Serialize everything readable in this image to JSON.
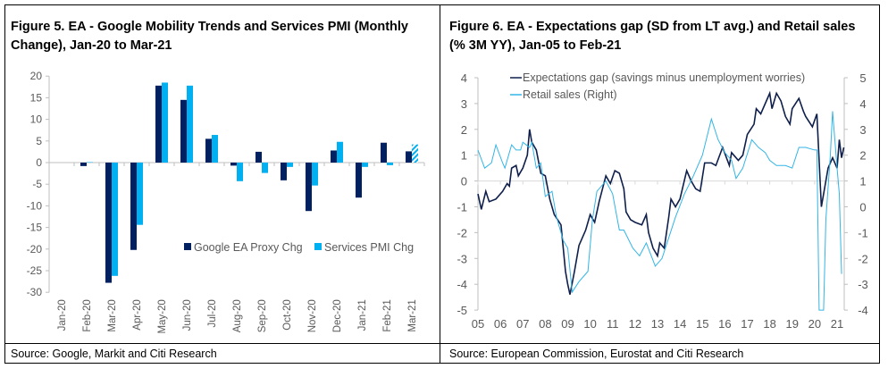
{
  "left": {
    "title": "Figure 5. EA - Google Mobility Trends and Services PMI (Monthly Change), Jan-20 to Mar-21",
    "source": "Source: Google, Markit and Citi Research"
  },
  "right": {
    "title": "Figure 6. EA - Expectations gap (SD from LT avg.) and Retail sales (% 3M YY), Jan-05 to Feb-21",
    "source": "Source: European Commission, Eurostat and Citi Research"
  },
  "chart_data": [
    {
      "type": "bar",
      "title": "Figure 5. EA - Google Mobility Trends and Services PMI (Monthly Change), Jan-20 to Mar-21",
      "categories": [
        "Jan-20",
        "Feb-20",
        "Mar-20",
        "Apr-20",
        "May-20",
        "Jun-20",
        "Jul-20",
        "Aug-20",
        "Sep-20",
        "Oct-20",
        "Nov-20",
        "Dec-20",
        "Jan-21",
        "Feb-21",
        "Mar-21"
      ],
      "series": [
        {
          "name": "Google EA Proxy Chg",
          "color": "#002060",
          "values": [
            0,
            -0.8,
            -27.8,
            -20.2,
            17.8,
            14.5,
            5.5,
            -0.7,
            2.5,
            -4.1,
            -11.2,
            2.8,
            -8.1,
            4.6,
            2.6
          ]
        },
        {
          "name": "Services PMI Chg",
          "color": "#00B0F0",
          "values": [
            0,
            0.1,
            -26.2,
            -14.4,
            18.5,
            17.8,
            6.4,
            -4.3,
            -2.4,
            -1.0,
            -5.3,
            4.8,
            -1.0,
            -0.6,
            4.2
          ],
          "hatched_last": true
        }
      ],
      "ylim": [
        -30,
        20
      ],
      "yticks": [
        20,
        15,
        10,
        5,
        0,
        -5,
        -10,
        -15,
        -20,
        -25,
        -30
      ],
      "legend": "bottom-right"
    },
    {
      "type": "line",
      "title": "Figure 6. EA - Expectations gap (SD from LT avg.) and Retail sales (% 3M YY), Jan-05 to Feb-21",
      "xticks": [
        "05",
        "06",
        "07",
        "08",
        "09",
        "10",
        "11",
        "12",
        "13",
        "14",
        "15",
        "16",
        "17",
        "18",
        "19",
        "20",
        "21"
      ],
      "ylim": [
        -5,
        4
      ],
      "yticks": [
        4,
        3,
        2,
        1,
        0,
        -1,
        -2,
        -3,
        -4,
        -5
      ],
      "y2lim": [
        -4,
        5
      ],
      "y2ticks": [
        5,
        4,
        3,
        2,
        1,
        0,
        -1,
        -2,
        -3,
        -4
      ],
      "legend": "top-left",
      "series": [
        {
          "name": "Expectations gap (savings minus unemployment worries)",
          "axis": "left",
          "color": "#0F1F4B",
          "points": [
            [
              5.0,
              -0.5
            ],
            [
              5.15,
              -1.1
            ],
            [
              5.35,
              -0.4
            ],
            [
              5.5,
              -0.8
            ],
            [
              5.8,
              -0.7
            ],
            [
              6.1,
              -0.4
            ],
            [
              6.3,
              -0.1
            ],
            [
              6.4,
              -0.2
            ],
            [
              6.5,
              0.5
            ],
            [
              6.7,
              0.6
            ],
            [
              6.8,
              0.2
            ],
            [
              7.0,
              0.5
            ],
            [
              7.2,
              1.0
            ],
            [
              7.3,
              2.0
            ],
            [
              7.4,
              1.5
            ],
            [
              7.6,
              1.2
            ],
            [
              7.8,
              0.3
            ],
            [
              8.0,
              0.2
            ],
            [
              8.2,
              -0.7
            ],
            [
              8.4,
              -1.3
            ],
            [
              8.7,
              -1.7
            ],
            [
              8.9,
              -3.5
            ],
            [
              9.0,
              -4.0
            ],
            [
              9.1,
              -4.4
            ],
            [
              9.3,
              -3.5
            ],
            [
              9.5,
              -2.5
            ],
            [
              9.8,
              -1.9
            ],
            [
              10.0,
              -1.3
            ],
            [
              10.2,
              -1.6
            ],
            [
              10.4,
              -0.8
            ],
            [
              10.7,
              0.2
            ],
            [
              10.9,
              -0.1
            ],
            [
              11.1,
              0.4
            ],
            [
              11.3,
              0.3
            ],
            [
              11.5,
              -0.3
            ],
            [
              11.6,
              -1.2
            ],
            [
              11.8,
              -1.5
            ],
            [
              12.0,
              -1.6
            ],
            [
              12.3,
              -1.7
            ],
            [
              12.5,
              -1.3
            ],
            [
              12.6,
              -2.0
            ],
            [
              12.8,
              -2.6
            ],
            [
              13.0,
              -2.9
            ],
            [
              13.1,
              -2.4
            ],
            [
              13.3,
              -2.6
            ],
            [
              13.5,
              -1.4
            ],
            [
              13.6,
              -0.7
            ],
            [
              13.8,
              -1.0
            ],
            [
              14.0,
              -0.7
            ],
            [
              14.3,
              0.4
            ],
            [
              14.5,
              0.0
            ],
            [
              14.7,
              -0.3
            ],
            [
              14.9,
              -0.4
            ],
            [
              15.1,
              0.7
            ],
            [
              15.4,
              0.7
            ],
            [
              15.6,
              0.6
            ],
            [
              15.9,
              1.3
            ],
            [
              16.2,
              0.6
            ],
            [
              16.3,
              1.1
            ],
            [
              16.6,
              0.8
            ],
            [
              16.8,
              1.0
            ],
            [
              17.0,
              1.8
            ],
            [
              17.3,
              2.2
            ],
            [
              17.4,
              2.8
            ],
            [
              17.6,
              2.6
            ],
            [
              17.9,
              3.2
            ],
            [
              18.0,
              3.4
            ],
            [
              18.1,
              2.8
            ],
            [
              18.3,
              3.4
            ],
            [
              18.5,
              3.1
            ],
            [
              18.7,
              2.5
            ],
            [
              18.9,
              2.2
            ],
            [
              19.0,
              2.8
            ],
            [
              19.3,
              3.2
            ],
            [
              19.5,
              2.7
            ],
            [
              19.6,
              2.5
            ],
            [
              19.9,
              2.1
            ],
            [
              20.1,
              2.6
            ],
            [
              20.3,
              -1.0
            ],
            [
              20.6,
              0.5
            ],
            [
              20.8,
              0.9
            ],
            [
              21.0,
              0.5
            ],
            [
              21.1,
              1.6
            ],
            [
              21.2,
              0.9
            ],
            [
              21.3,
              1.3
            ]
          ]
        },
        {
          "name": "Retail sales (Right)",
          "axis": "right",
          "color": "#33B5E5",
          "points": [
            [
              5.0,
              2.2
            ],
            [
              5.3,
              1.5
            ],
            [
              5.6,
              1.7
            ],
            [
              5.8,
              2.4
            ],
            [
              6.1,
              1.7
            ],
            [
              6.2,
              1.5
            ],
            [
              6.5,
              2.4
            ],
            [
              6.7,
              2.2
            ],
            [
              6.9,
              2.2
            ],
            [
              7.0,
              2.5
            ],
            [
              7.3,
              2.3
            ],
            [
              7.4,
              2.5
            ],
            [
              7.6,
              1.5
            ],
            [
              7.8,
              1.7
            ],
            [
              8.0,
              0.4
            ],
            [
              8.3,
              0.6
            ],
            [
              8.5,
              -0.4
            ],
            [
              8.8,
              -1.3
            ],
            [
              9.0,
              -1.6
            ],
            [
              9.2,
              -3.3
            ],
            [
              9.5,
              -2.9
            ],
            [
              9.9,
              -2.5
            ],
            [
              10.1,
              -0.5
            ],
            [
              10.3,
              0.6
            ],
            [
              10.7,
              1.0
            ],
            [
              11.0,
              0.5
            ],
            [
              11.3,
              -0.9
            ],
            [
              11.5,
              -0.9
            ],
            [
              11.9,
              -1.6
            ],
            [
              12.2,
              -1.9
            ],
            [
              12.5,
              -1.4
            ],
            [
              12.9,
              -2.3
            ],
            [
              13.2,
              -2.0
            ],
            [
              13.5,
              -1.2
            ],
            [
              13.8,
              -0.4
            ],
            [
              14.2,
              0.5
            ],
            [
              14.6,
              1.2
            ],
            [
              15.0,
              2.0
            ],
            [
              15.4,
              3.4
            ],
            [
              15.7,
              2.6
            ],
            [
              16.0,
              2.1
            ],
            [
              16.3,
              1.8
            ],
            [
              16.5,
              1.1
            ],
            [
              16.8,
              1.5
            ],
            [
              17.2,
              2.6
            ],
            [
              17.5,
              2.3
            ],
            [
              17.8,
              2.1
            ],
            [
              18.0,
              1.8
            ],
            [
              18.3,
              1.6
            ],
            [
              18.7,
              1.6
            ],
            [
              19.0,
              1.5
            ],
            [
              19.3,
              2.3
            ],
            [
              19.6,
              2.3
            ],
            [
              20.0,
              2.2
            ],
            [
              20.1,
              2.2
            ],
            [
              20.2,
              -4.0
            ],
            [
              20.4,
              -4.0
            ],
            [
              20.5,
              -0.5
            ],
            [
              20.7,
              2.0
            ],
            [
              20.8,
              3.7
            ],
            [
              21.0,
              1.5
            ],
            [
              21.1,
              0.5
            ],
            [
              21.2,
              -2.6
            ]
          ]
        }
      ]
    }
  ]
}
